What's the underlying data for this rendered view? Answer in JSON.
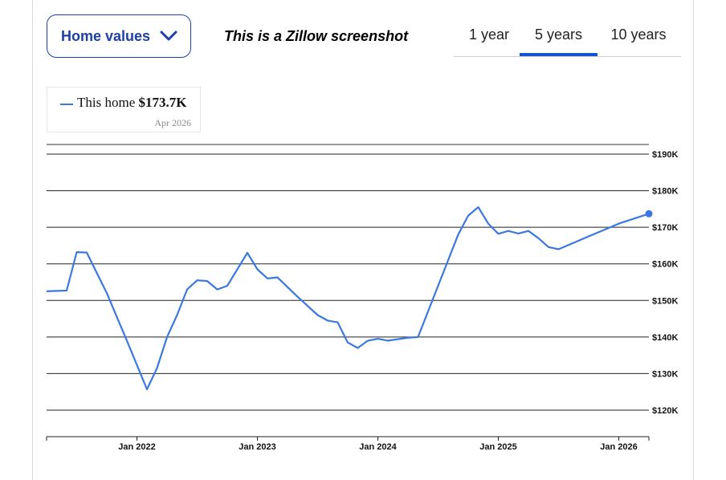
{
  "header": {
    "dropdown_label": "Home values",
    "caption": "This is a Zillow screenshot"
  },
  "tabs": [
    {
      "label": "1 year",
      "active": false
    },
    {
      "label": "5 years",
      "active": true
    },
    {
      "label": "10 years",
      "active": false
    }
  ],
  "legend": {
    "series_label": "This home",
    "current_value": "$173.7K",
    "date": "Apr 2026"
  },
  "colors": {
    "accent": "#1d3fa8",
    "tab_active": "#1554d0",
    "series": "#3b78e0"
  },
  "chart_data": {
    "type": "line",
    "title": "",
    "xlabel": "",
    "ylabel": "",
    "xlim": [
      "2021-04",
      "2026-04"
    ],
    "ylim": [
      120000,
      190000
    ],
    "grid": true,
    "y_ticks": [
      120000,
      130000,
      140000,
      150000,
      160000,
      170000,
      180000,
      190000
    ],
    "y_tick_labels": [
      "$120K",
      "$130K",
      "$140K",
      "$150K",
      "$160K",
      "$170K",
      "$180K",
      "$190K"
    ],
    "x_ticks": [
      "2022-01",
      "2023-01",
      "2024-01",
      "2025-01",
      "2026-01"
    ],
    "x_tick_labels": [
      "Jan 2022",
      "Jan 2023",
      "Jan 2024",
      "Jan 2025",
      "Jan 2026"
    ],
    "series": [
      {
        "name": "This home",
        "points": [
          [
            "2021-04",
            152500
          ],
          [
            "2021-06",
            152700
          ],
          [
            "2021-07",
            163200
          ],
          [
            "2021-08",
            163100
          ],
          [
            "2021-10",
            152000
          ],
          [
            "2021-12",
            139000
          ],
          [
            "2022-02",
            125700
          ],
          [
            "2022-03",
            131500
          ],
          [
            "2022-04",
            140000
          ],
          [
            "2022-05",
            146000
          ],
          [
            "2022-06",
            153000
          ],
          [
            "2022-07",
            155500
          ],
          [
            "2022-08",
            155300
          ],
          [
            "2022-09",
            153000
          ],
          [
            "2022-10",
            154000
          ],
          [
            "2022-12",
            163000
          ],
          [
            "2023-01",
            158500
          ],
          [
            "2023-02",
            156000
          ],
          [
            "2023-03",
            156300
          ],
          [
            "2023-05",
            151000
          ],
          [
            "2023-07",
            146000
          ],
          [
            "2023-08",
            144500
          ],
          [
            "2023-09",
            144000
          ],
          [
            "2023-10",
            138500
          ],
          [
            "2023-11",
            137000
          ],
          [
            "2023-12",
            139000
          ],
          [
            "2024-01",
            139500
          ],
          [
            "2024-02",
            139000
          ],
          [
            "2024-04",
            139800
          ],
          [
            "2024-05",
            140000
          ],
          [
            "2024-07",
            154000
          ],
          [
            "2024-09",
            168000
          ],
          [
            "2024-10",
            173200
          ],
          [
            "2024-11",
            175500
          ],
          [
            "2024-12",
            171000
          ],
          [
            "2025-01",
            168200
          ],
          [
            "2025-02",
            169000
          ],
          [
            "2025-03",
            168300
          ],
          [
            "2025-04",
            169000
          ],
          [
            "2025-05",
            167000
          ],
          [
            "2025-06",
            164600
          ],
          [
            "2025-07",
            164000
          ],
          [
            "2025-10",
            167500
          ],
          [
            "2026-01",
            171000
          ],
          [
            "2026-04",
            173700
          ]
        ]
      }
    ]
  }
}
